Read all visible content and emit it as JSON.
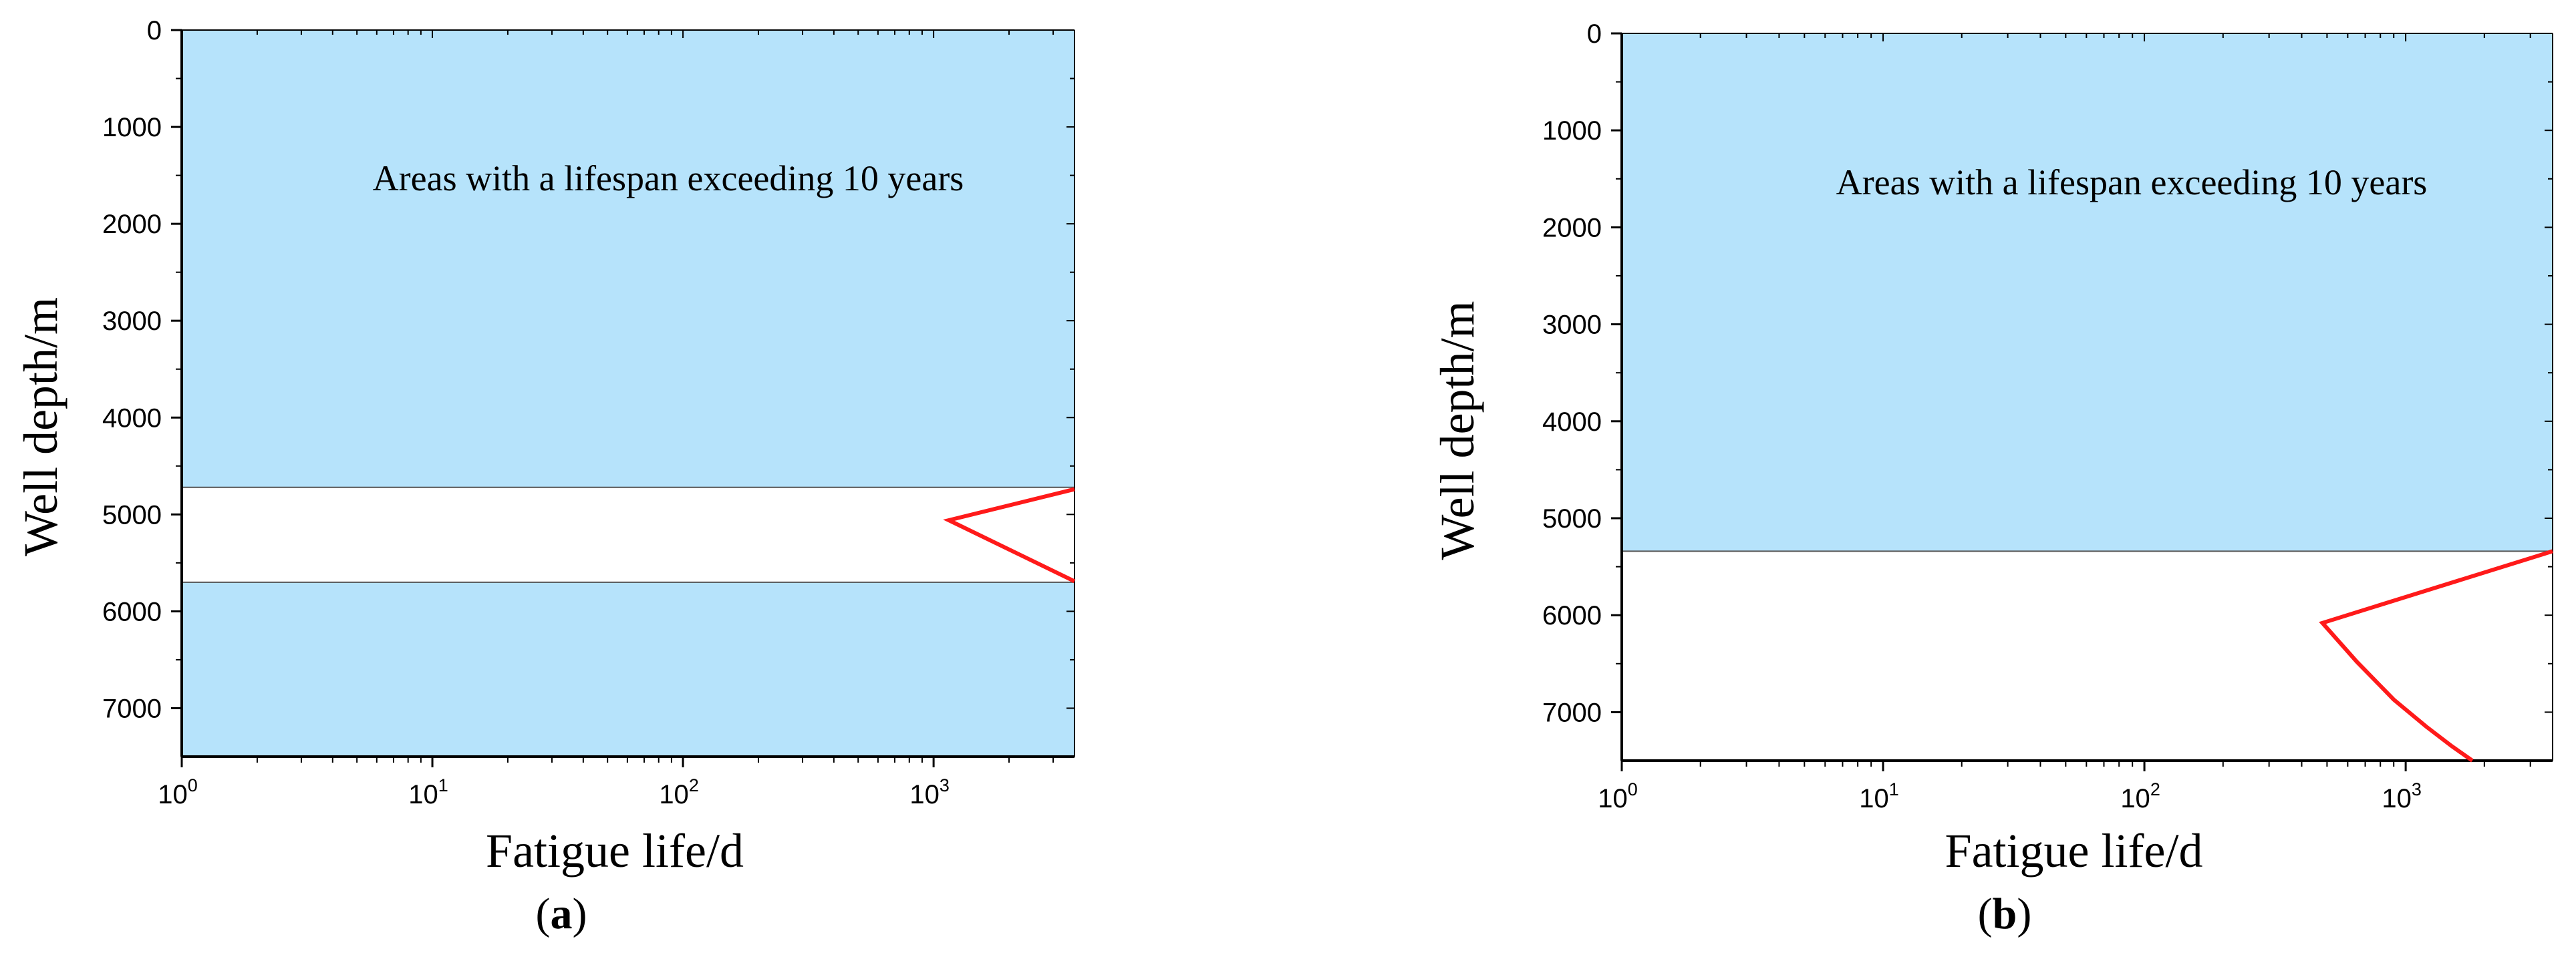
{
  "colors": {
    "region_fill": "#b6e3fb",
    "curve": "#ff1a1a",
    "axis": "#000000"
  },
  "chart_data": [
    {
      "type": "line",
      "panel_label": "a",
      "xlabel": "Fatigue life/d",
      "ylabel": "Well depth/m",
      "x_scale": "log",
      "xlim": [
        1,
        3650
      ],
      "ylim": [
        7500,
        0
      ],
      "x_ticks": [
        1,
        10,
        100,
        1000
      ],
      "y_ticks": [
        0,
        1000,
        2000,
        3000,
        4000,
        5000,
        6000,
        7000
      ],
      "grid": false,
      "legend": "none",
      "region_label": "Areas with a lifespan exceeding 10 years",
      "shaded_regions_depth": [
        [
          0,
          4720
        ],
        [
          5700,
          7500
        ]
      ],
      "series": [
        {
          "x": [
            3650,
            1150,
            3650
          ],
          "y": [
            4740,
            5060,
            5690
          ]
        }
      ]
    },
    {
      "type": "line",
      "panel_label": "b",
      "xlabel": "Fatigue life/d",
      "ylabel": "Well depth/m",
      "x_scale": "log",
      "xlim": [
        1,
        3650
      ],
      "ylim": [
        7500,
        0
      ],
      "x_ticks": [
        1,
        10,
        100,
        1000
      ],
      "y_ticks": [
        0,
        1000,
        2000,
        3000,
        4000,
        5000,
        6000,
        7000
      ],
      "grid": false,
      "legend": "none",
      "region_label": "Areas with a lifespan exceeding 10 years",
      "shaded_regions_depth": [
        [
          0,
          5340
        ]
      ],
      "series": [
        {
          "x": [
            3650,
            480,
            650,
            900,
            1200,
            1500,
            1800
          ],
          "y": [
            5340,
            6080,
            6480,
            6870,
            7150,
            7350,
            7500
          ]
        }
      ]
    }
  ]
}
